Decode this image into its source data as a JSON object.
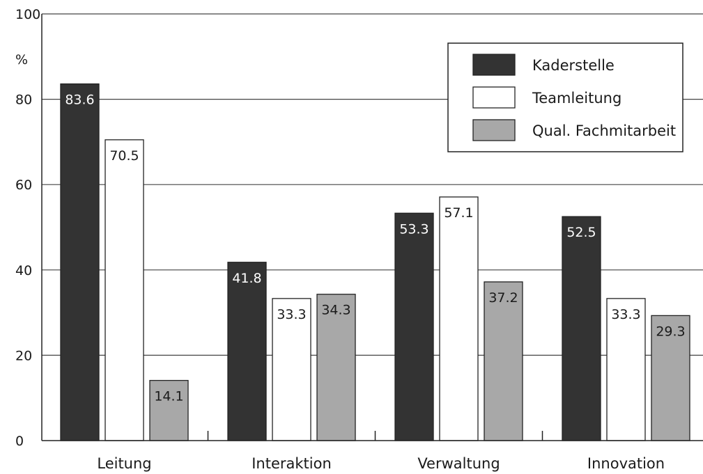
{
  "chart_data": {
    "type": "bar",
    "title": "",
    "xlabel": "",
    "ylabel": "%",
    "ylim": [
      0,
      100
    ],
    "yticks": [
      0,
      20,
      40,
      60,
      80,
      100
    ],
    "grid": true,
    "legend_position": "top-right",
    "categories": [
      "Leitung",
      "Interaktion",
      "Verwaltung",
      "Innovation"
    ],
    "series": [
      {
        "name": "Kaderstelle",
        "values": [
          83.6,
          41.8,
          53.3,
          52.5
        ],
        "labels": [
          "83.6",
          "41.8",
          "53.3",
          "52.5"
        ],
        "color": "#333333",
        "label_color": "#ffffff"
      },
      {
        "name": "Teamleitung",
        "values": [
          70.5,
          33.3,
          57.1,
          33.3
        ],
        "labels": [
          "70.5",
          "33.3",
          "57.1",
          "33.3"
        ],
        "color": "#ffffff",
        "label_color": "#1a1a1a"
      },
      {
        "name": "Qual. Fachmitarbeit",
        "values": [
          14.1,
          34.3,
          37.2,
          29.3
        ],
        "labels": [
          "14.1",
          "34.3",
          "37.2",
          "29.3"
        ],
        "color": "#a8a8a8",
        "label_color": "#1a1a1a"
      }
    ]
  }
}
